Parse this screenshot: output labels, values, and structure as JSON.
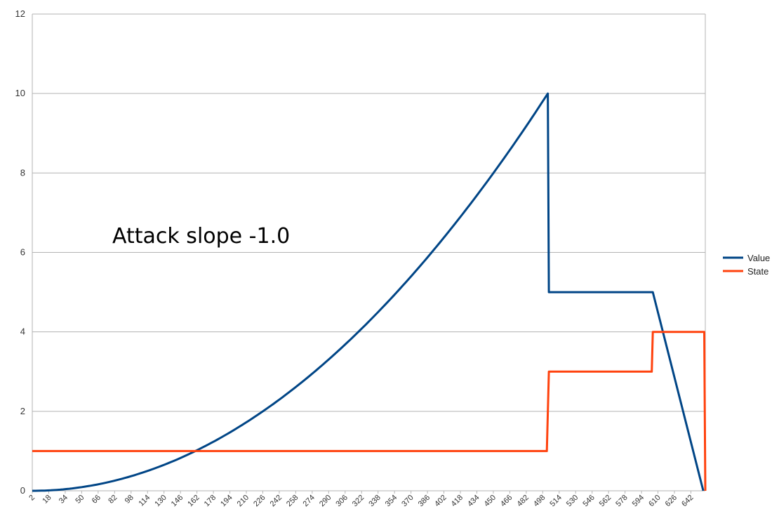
{
  "chart_data": {
    "type": "line",
    "title": "",
    "xlabel": "",
    "ylabel": "",
    "xlim": [
      2,
      656
    ],
    "ylim": [
      0,
      12
    ],
    "y_ticks": [
      0,
      2,
      4,
      6,
      8,
      10,
      12
    ],
    "x_ticks": [
      2,
      18,
      34,
      50,
      66,
      82,
      98,
      114,
      130,
      146,
      162,
      178,
      194,
      210,
      226,
      242,
      258,
      274,
      290,
      306,
      322,
      338,
      354,
      370,
      386,
      402,
      418,
      434,
      450,
      466,
      482,
      498,
      514,
      530,
      546,
      562,
      578,
      594,
      610,
      626,
      642
    ],
    "grid": true,
    "legend_position": "right",
    "annotation": "Attack slope -1.0",
    "series": [
      {
        "name": "Value",
        "color": "#004586",
        "shape": "quadratic attack 0→10 over x 2→503, drop to 5, hold to 605, linear release to 0 at 654",
        "points": [
          [
            2,
            0
          ],
          [
            52,
            0.1
          ],
          [
            102,
            0.4
          ],
          [
            152,
            0.9
          ],
          [
            202,
            1.6
          ],
          [
            252,
            2.5
          ],
          [
            302,
            3.6
          ],
          [
            352,
            4.9
          ],
          [
            402,
            6.4
          ],
          [
            452,
            8.1
          ],
          [
            503,
            10
          ],
          [
            504,
            5
          ],
          [
            605,
            5
          ],
          [
            654,
            0
          ]
        ]
      },
      {
        "name": "State",
        "color": "#ff420e",
        "points": [
          [
            2,
            1
          ],
          [
            502,
            1
          ],
          [
            504,
            3
          ],
          [
            604,
            3
          ],
          [
            605,
            4
          ],
          [
            655,
            4
          ],
          [
            656,
            0
          ]
        ]
      }
    ]
  }
}
